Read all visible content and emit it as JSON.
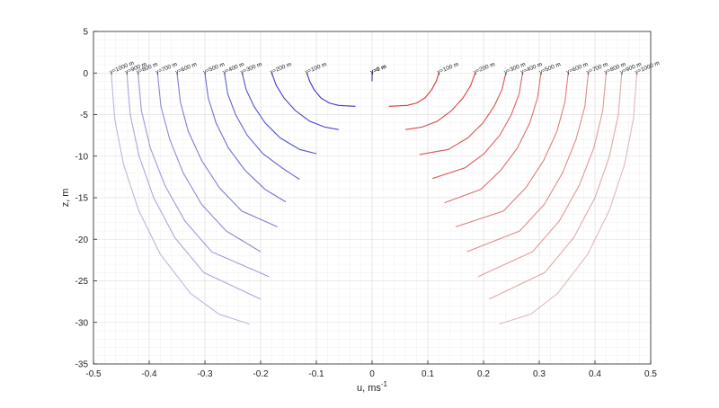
{
  "chart_data": {
    "type": "line",
    "title": "",
    "xlabel": "u, ms",
    "xlabel_superscript": "-1",
    "ylabel": "z, m",
    "xlim": [
      -0.5,
      0.5
    ],
    "ylim": [
      -35,
      5
    ],
    "x_ticks": [
      -0.5,
      -0.4,
      -0.3,
      -0.2,
      -0.1,
      0,
      0.1,
      0.2,
      0.3,
      0.4,
      0.5
    ],
    "x_tick_labels": [
      "-0.5",
      "-0.4",
      "-0.3",
      "-0.2",
      "-0.1",
      "0",
      "0.1",
      "0.2",
      "0.3",
      "0.4",
      "0.5"
    ],
    "y_ticks": [
      5,
      0,
      -5,
      -10,
      -15,
      -20,
      -25,
      -30,
      -35
    ],
    "y_tick_labels": [
      "5",
      "0",
      "-5",
      "-10",
      "-15",
      "-20",
      "-25",
      "-30",
      "-35"
    ],
    "grid": true,
    "minor_grid": true,
    "legend": "none",
    "colors": {
      "negative": "#3333cc",
      "positive": "#dd3333",
      "zero": "#333399"
    },
    "series": [
      {
        "label": "y=0 m",
        "side": "zero",
        "intensity": 1.0,
        "points": [
          [
            0,
            0
          ],
          [
            0,
            -1
          ]
        ]
      },
      {
        "label": "y=100 m",
        "side": "negative",
        "intensity": 1.0,
        "points": [
          [
            -0.117,
            0
          ],
          [
            -0.112,
            -1
          ],
          [
            -0.104,
            -2
          ],
          [
            -0.092,
            -3
          ],
          [
            -0.077,
            -3.6
          ],
          [
            -0.06,
            -3.9
          ],
          [
            -0.03,
            -4
          ]
        ]
      },
      {
        "label": "y=200 m",
        "side": "negative",
        "intensity": 0.9,
        "points": [
          [
            -0.18,
            0
          ],
          [
            -0.172,
            -1.5
          ],
          [
            -0.158,
            -3
          ],
          [
            -0.138,
            -4.5
          ],
          [
            -0.112,
            -5.8
          ],
          [
            -0.085,
            -6.5
          ],
          [
            -0.06,
            -6.8
          ]
        ]
      },
      {
        "label": "y=300 m",
        "side": "negative",
        "intensity": 0.8,
        "points": [
          [
            -0.233,
            0
          ],
          [
            -0.226,
            -2
          ],
          [
            -0.212,
            -4
          ],
          [
            -0.192,
            -6
          ],
          [
            -0.165,
            -7.8
          ],
          [
            -0.13,
            -9.2
          ],
          [
            -0.1,
            -9.7
          ]
        ]
      },
      {
        "label": "y=400 m",
        "side": "negative",
        "intensity": 0.7,
        "points": [
          [
            -0.265,
            0
          ],
          [
            -0.259,
            -2.5
          ],
          [
            -0.245,
            -5
          ],
          [
            -0.224,
            -7.5
          ],
          [
            -0.196,
            -9.7
          ],
          [
            -0.162,
            -11.4
          ],
          [
            -0.13,
            -12.8
          ]
        ]
      },
      {
        "label": "y=500 m",
        "side": "negative",
        "intensity": 0.6,
        "points": [
          [
            -0.3,
            0
          ],
          [
            -0.294,
            -3
          ],
          [
            -0.28,
            -6
          ],
          [
            -0.258,
            -9
          ],
          [
            -0.228,
            -11.7
          ],
          [
            -0.192,
            -14
          ],
          [
            -0.155,
            -15.5
          ]
        ]
      },
      {
        "label": "y=600 m",
        "side": "negative",
        "intensity": 0.5,
        "points": [
          [
            -0.35,
            0
          ],
          [
            -0.344,
            -3.5
          ],
          [
            -0.33,
            -7
          ],
          [
            -0.306,
            -10.5
          ],
          [
            -0.274,
            -13.8
          ],
          [
            -0.234,
            -16.6
          ],
          [
            -0.17,
            -18.5
          ]
        ]
      },
      {
        "label": "y=700 m",
        "side": "negative",
        "intensity": 0.4,
        "points": [
          [
            -0.385,
            0
          ],
          [
            -0.379,
            -4
          ],
          [
            -0.363,
            -8
          ],
          [
            -0.339,
            -12
          ],
          [
            -0.306,
            -15.8
          ],
          [
            -0.262,
            -19
          ],
          [
            -0.2,
            -21.5
          ]
        ]
      },
      {
        "label": "y=800 m",
        "side": "negative",
        "intensity": 0.3,
        "points": [
          [
            -0.42,
            0
          ],
          [
            -0.414,
            -4.5
          ],
          [
            -0.398,
            -9
          ],
          [
            -0.372,
            -13.5
          ],
          [
            -0.336,
            -17.8
          ],
          [
            -0.288,
            -21.5
          ],
          [
            -0.185,
            -24.5
          ]
        ]
      },
      {
        "label": "y=900 m",
        "side": "negative",
        "intensity": 0.2,
        "points": [
          [
            -0.44,
            0
          ],
          [
            -0.434,
            -5
          ],
          [
            -0.418,
            -10
          ],
          [
            -0.392,
            -15
          ],
          [
            -0.354,
            -19.8
          ],
          [
            -0.302,
            -24
          ],
          [
            -0.2,
            -27.2
          ]
        ]
      },
      {
        "label": "y=1000 m",
        "side": "negative",
        "intensity": 0.1,
        "points": [
          [
            -0.468,
            0
          ],
          [
            -0.462,
            -5.5
          ],
          [
            -0.446,
            -11
          ],
          [
            -0.419,
            -16.5
          ],
          [
            -0.38,
            -21.8
          ],
          [
            -0.326,
            -26.5
          ],
          [
            -0.275,
            -29
          ],
          [
            -0.22,
            -30.2
          ]
        ]
      },
      {
        "label": "y=100 m",
        "side": "positive",
        "intensity": 1.0,
        "points": [
          [
            0.12,
            0
          ],
          [
            0.115,
            -1
          ],
          [
            0.107,
            -2
          ],
          [
            0.095,
            -3
          ],
          [
            0.08,
            -3.6
          ],
          [
            0.063,
            -3.9
          ],
          [
            0.03,
            -4
          ]
        ]
      },
      {
        "label": "y=200 m",
        "side": "positive",
        "intensity": 0.9,
        "points": [
          [
            0.185,
            0
          ],
          [
            0.177,
            -1.5
          ],
          [
            0.163,
            -3
          ],
          [
            0.143,
            -4.5
          ],
          [
            0.117,
            -5.8
          ],
          [
            0.09,
            -6.5
          ],
          [
            0.06,
            -6.8
          ]
        ]
      },
      {
        "label": "y=300 m",
        "side": "positive",
        "intensity": 0.8,
        "points": [
          [
            0.24,
            0
          ],
          [
            0.233,
            -2
          ],
          [
            0.219,
            -4
          ],
          [
            0.199,
            -6
          ],
          [
            0.172,
            -7.8
          ],
          [
            0.137,
            -9.2
          ],
          [
            0.085,
            -9.8
          ]
        ]
      },
      {
        "label": "y=400 m",
        "side": "positive",
        "intensity": 0.7,
        "points": [
          [
            0.27,
            0
          ],
          [
            0.264,
            -2.5
          ],
          [
            0.25,
            -5
          ],
          [
            0.229,
            -7.5
          ],
          [
            0.201,
            -9.7
          ],
          [
            0.167,
            -11.4
          ],
          [
            0.108,
            -12.7
          ]
        ]
      },
      {
        "label": "y=500 m",
        "side": "positive",
        "intensity": 0.6,
        "points": [
          [
            0.303,
            0
          ],
          [
            0.297,
            -3
          ],
          [
            0.283,
            -6
          ],
          [
            0.261,
            -9
          ],
          [
            0.231,
            -11.7
          ],
          [
            0.195,
            -14
          ],
          [
            0.13,
            -15.6
          ]
        ]
      },
      {
        "label": "y=600 m",
        "side": "positive",
        "intensity": 0.5,
        "points": [
          [
            0.352,
            0
          ],
          [
            0.346,
            -3.5
          ],
          [
            0.332,
            -7
          ],
          [
            0.308,
            -10.5
          ],
          [
            0.276,
            -13.8
          ],
          [
            0.236,
            -16.6
          ],
          [
            0.15,
            -18.5
          ]
        ]
      },
      {
        "label": "y=700 m",
        "side": "positive",
        "intensity": 0.4,
        "points": [
          [
            0.388,
            0
          ],
          [
            0.382,
            -4
          ],
          [
            0.366,
            -8
          ],
          [
            0.342,
            -12
          ],
          [
            0.309,
            -15.8
          ],
          [
            0.265,
            -19
          ],
          [
            0.17,
            -21.5
          ]
        ]
      },
      {
        "label": "y=800 m",
        "side": "positive",
        "intensity": 0.3,
        "points": [
          [
            0.42,
            0
          ],
          [
            0.414,
            -4.5
          ],
          [
            0.398,
            -9
          ],
          [
            0.372,
            -13.5
          ],
          [
            0.336,
            -17.8
          ],
          [
            0.288,
            -21.5
          ],
          [
            0.19,
            -24.5
          ]
        ]
      },
      {
        "label": "y=900 m",
        "side": "positive",
        "intensity": 0.2,
        "points": [
          [
            0.448,
            0
          ],
          [
            0.442,
            -5
          ],
          [
            0.426,
            -10
          ],
          [
            0.4,
            -15
          ],
          [
            0.362,
            -19.8
          ],
          [
            0.31,
            -24
          ],
          [
            0.21,
            -27.2
          ]
        ]
      },
      {
        "label": "y=1000 m",
        "side": "positive",
        "intensity": 0.1,
        "points": [
          [
            0.475,
            0
          ],
          [
            0.469,
            -5.5
          ],
          [
            0.453,
            -11
          ],
          [
            0.426,
            -16.5
          ],
          [
            0.387,
            -21.8
          ],
          [
            0.333,
            -26.5
          ],
          [
            0.285,
            -29
          ],
          [
            0.228,
            -30.2
          ]
        ]
      }
    ]
  }
}
